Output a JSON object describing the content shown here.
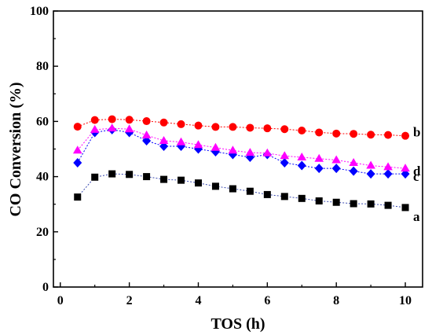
{
  "chart_data": {
    "type": "line",
    "xlabel": "TOS (h)",
    "ylabel": "CO Conversion (%)",
    "xlim": [
      -0.2,
      10.5
    ],
    "ylim": [
      0,
      100
    ],
    "xticks": [
      0,
      2,
      4,
      6,
      8,
      10
    ],
    "yticks": [
      0,
      20,
      40,
      60,
      80,
      100
    ],
    "grid": false,
    "x": [
      0.5,
      1,
      1.5,
      2,
      2.5,
      3,
      3.5,
      4,
      4.5,
      5,
      5.5,
      6,
      6.5,
      7,
      7.5,
      8,
      8.5,
      9,
      9.5,
      10
    ],
    "series": [
      {
        "name": "a",
        "color": "#000000",
        "line_color": "#3a4ab0",
        "marker": "square",
        "values": [
          32.6,
          39.8,
          41.0,
          40.8,
          40.0,
          39.0,
          38.7,
          37.7,
          36.5,
          35.6,
          34.7,
          33.5,
          32.8,
          32.1,
          31.2,
          30.7,
          30.2,
          30.1,
          29.6,
          28.8
        ]
      },
      {
        "name": "b",
        "color": "#ff0000",
        "line_color": "#ff0000",
        "marker": "circle",
        "values": [
          58.1,
          60.5,
          60.8,
          60.6,
          60.1,
          59.6,
          59.0,
          58.5,
          58.0,
          58.0,
          57.7,
          57.5,
          57.2,
          56.7,
          56.0,
          55.6,
          55.5,
          55.2,
          55.1,
          54.8
        ]
      },
      {
        "name": "c",
        "color": "#0000ff",
        "line_color": "#0000ff",
        "marker": "diamond",
        "values": [
          45.0,
          56.0,
          57.0,
          56.0,
          53.0,
          51.0,
          51.0,
          50.0,
          49.0,
          48.0,
          47.0,
          48.0,
          45.0,
          44.0,
          43.0,
          43.0,
          42.0,
          41.0,
          41.0,
          41.0
        ]
      },
      {
        "name": "d",
        "color": "#ff00ff",
        "line_color": "#ff00ff",
        "marker": "triangle",
        "values": [
          49.5,
          57.0,
          57.5,
          57.2,
          55.0,
          53.0,
          52.5,
          51.5,
          50.5,
          49.5,
          48.7,
          48.5,
          47.5,
          47.0,
          46.5,
          46.0,
          45.0,
          44.0,
          43.5,
          43.0
        ]
      }
    ]
  }
}
